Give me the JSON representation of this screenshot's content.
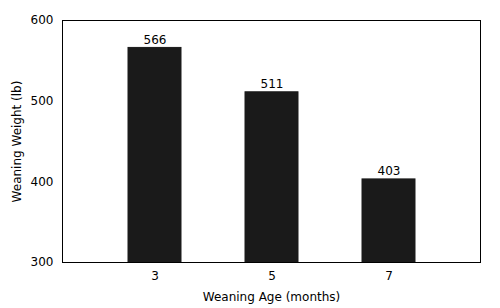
{
  "chart_data": {
    "type": "bar",
    "categories": [
      "3",
      "5",
      "7"
    ],
    "values": [
      566,
      511,
      403
    ],
    "color": "#1a1a1a",
    "xlabel": "Weaning Age (months)",
    "ylabel": "Weaning Weight (lb)",
    "ylim": [
      300,
      600
    ],
    "yticks": [
      300,
      400,
      500,
      600
    ],
    "grid": false,
    "data_labels": true
  }
}
